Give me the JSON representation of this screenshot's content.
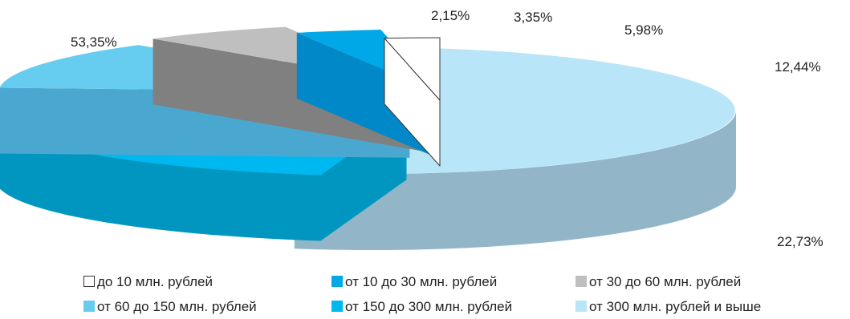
{
  "chart_data": {
    "type": "pie",
    "style": "3d-exploded",
    "categories": [
      "до 10 млн. рублей",
      "от 10 до 30 млн. рублей",
      "от 30 до 60 млн. рублей",
      "от 60 до 150 млн. рублей",
      "от 150 до 300 млн. рублей",
      "от 300 млн. рублей и выше"
    ],
    "values": [
      2.15,
      3.35,
      5.98,
      12.44,
      22.73,
      53.35
    ],
    "value_labels": [
      "2,15%",
      "3,35%",
      "5,98%",
      "12,44%",
      "22,73%",
      "53,35%"
    ],
    "colors": [
      "#ffffff",
      "#00a8e8",
      "#bfbfbf",
      "#66ccf0",
      "#00b8f0",
      "#b8e6f8"
    ],
    "side_colors": [
      "#ffffff",
      "#0088c8",
      "#808080",
      "#4aa8d0",
      "#0096c0",
      "#92b6c8"
    ],
    "legend_position": "bottom"
  }
}
